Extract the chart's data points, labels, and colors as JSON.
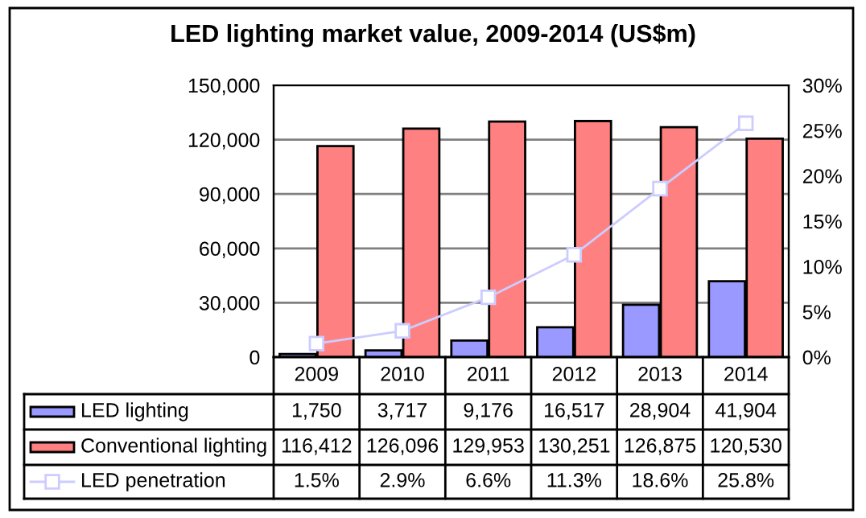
{
  "chart_data": {
    "type": "bar",
    "title": "LED lighting market value, 2009-2014 (US$m)",
    "categories": [
      "2009",
      "2010",
      "2011",
      "2012",
      "2013",
      "2014"
    ],
    "series": [
      {
        "name": "LED lighting",
        "color": "#9999ff",
        "values": [
          1750,
          3717,
          9176,
          16517,
          28904,
          41904
        ],
        "value_labels": [
          "1,750",
          "3,717",
          "9,176",
          "16,517",
          "28,904",
          "41,904"
        ]
      },
      {
        "name": "Conventional lighting",
        "color": "#ff8080",
        "values": [
          116412,
          126096,
          129953,
          130251,
          126875,
          120530
        ],
        "value_labels": [
          "116,412",
          "126,096",
          "129,953",
          "130,251",
          "126,875",
          "120,530"
        ]
      },
      {
        "name": "LED penetration",
        "type": "line",
        "axis": "y2",
        "color": "#ccccff",
        "marker": "square",
        "values": [
          1.5,
          2.9,
          6.6,
          11.3,
          18.6,
          25.8
        ],
        "value_labels": [
          "1.5%",
          "2.9%",
          "6.6%",
          "11.3%",
          "18.6%",
          "25.8%"
        ]
      }
    ],
    "ylim": [
      0,
      150000
    ],
    "yticks": [
      {
        "value": 0,
        "label": "0"
      },
      {
        "value": 30000,
        "label": "30,000"
      },
      {
        "value": 60000,
        "label": "60,000"
      },
      {
        "value": 90000,
        "label": "90,000"
      },
      {
        "value": 120000,
        "label": "120,000"
      },
      {
        "value": 150000,
        "label": "150,000"
      }
    ],
    "y2lim": [
      0,
      30
    ],
    "y2ticks": [
      {
        "value": 0,
        "label": "0%"
      },
      {
        "value": 5,
        "label": "5%"
      },
      {
        "value": 10,
        "label": "10%"
      },
      {
        "value": 15,
        "label": "15%"
      },
      {
        "value": 20,
        "label": "20%"
      },
      {
        "value": 25,
        "label": "25%"
      },
      {
        "value": 30,
        "label": "30%"
      }
    ],
    "grid": "y",
    "legend": "bottom"
  }
}
